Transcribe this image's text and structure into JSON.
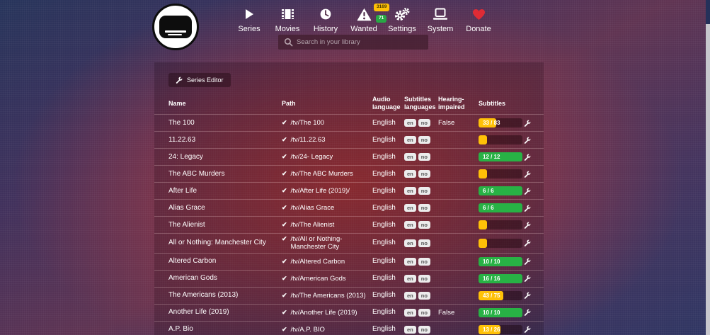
{
  "nav": {
    "items": [
      {
        "label": "Series",
        "icon": "play-icon"
      },
      {
        "label": "Movies",
        "icon": "film-icon"
      },
      {
        "label": "History",
        "icon": "clock-icon"
      },
      {
        "label": "Wanted",
        "icon": "warning-icon",
        "badges": [
          {
            "value": "3169",
            "color": "#ffc107"
          },
          {
            "value": "71",
            "color": "#28a745"
          }
        ]
      },
      {
        "label": "Settings",
        "icon": "cogs-icon"
      },
      {
        "label": "System",
        "icon": "laptop-icon"
      },
      {
        "label": "Donate",
        "icon": "heart-icon"
      }
    ],
    "search_placeholder": "Search in your library"
  },
  "editor": {
    "button_label": "Series Editor"
  },
  "icons": {
    "check": "✔"
  },
  "colors": {
    "progress_warning": "#ffc107",
    "progress_success": "#28b245",
    "heart_red": "#df2b35",
    "badge_bg": "#ececec"
  },
  "table": {
    "headers": [
      "Name",
      "Path",
      "Audio language",
      "Subtitles languages",
      "Hearing-impaired",
      "Subtitles"
    ],
    "rows": [
      {
        "name": "The 100",
        "path": "/tv/The 100",
        "audio": "English",
        "subtitle_languages": [
          "en",
          "no"
        ],
        "hi": "False",
        "progress": {
          "label": "33 / 83",
          "percent": 40,
          "state": "warning"
        }
      },
      {
        "name": "11.22.63",
        "path": "/tv/11.22.63",
        "audio": "English",
        "subtitle_languages": [
          "en",
          "no"
        ],
        "hi": "",
        "progress": {
          "label": "",
          "percent": 20,
          "state": "warning"
        }
      },
      {
        "name": "24: Legacy",
        "path": "/tv/24- Legacy",
        "audio": "English",
        "subtitle_languages": [
          "en",
          "no"
        ],
        "hi": "",
        "progress": {
          "label": "12 / 12",
          "percent": 100,
          "state": "success"
        }
      },
      {
        "name": "The ABC Murders",
        "path": "/tv/The ABC Murders",
        "audio": "English",
        "subtitle_languages": [
          "en",
          "no"
        ],
        "hi": "",
        "progress": {
          "label": "",
          "percent": 20,
          "state": "warning"
        }
      },
      {
        "name": "After Life",
        "path": "/tv/After Life (2019)/",
        "audio": "English",
        "subtitle_languages": [
          "en",
          "no"
        ],
        "hi": "",
        "progress": {
          "label": "6 / 6",
          "percent": 100,
          "state": "success"
        }
      },
      {
        "name": "Alias Grace",
        "path": "/tv/Alias Grace",
        "audio": "English",
        "subtitle_languages": [
          "en",
          "no"
        ],
        "hi": "",
        "progress": {
          "label": "6 / 6",
          "percent": 100,
          "state": "success"
        }
      },
      {
        "name": "The Alienist",
        "path": "/tv/The Alienist",
        "audio": "English",
        "subtitle_languages": [
          "en",
          "no"
        ],
        "hi": "",
        "progress": {
          "label": "",
          "percent": 20,
          "state": "warning"
        }
      },
      {
        "name": "All or Nothing: Manchester City",
        "path": "/tv/All or Nothing- Manchester City",
        "audio": "English",
        "subtitle_languages": [
          "en",
          "no"
        ],
        "hi": "",
        "progress": {
          "label": "",
          "percent": 20,
          "state": "warning"
        }
      },
      {
        "name": "Altered Carbon",
        "path": "/tv/Altered Carbon",
        "audio": "English",
        "subtitle_languages": [
          "en",
          "no"
        ],
        "hi": "",
        "progress": {
          "label": "10 / 10",
          "percent": 100,
          "state": "success"
        }
      },
      {
        "name": "American Gods",
        "path": "/tv/American Gods",
        "audio": "English",
        "subtitle_languages": [
          "en",
          "no"
        ],
        "hi": "",
        "progress": {
          "label": "16 / 16",
          "percent": 100,
          "state": "success"
        }
      },
      {
        "name": "The Americans (2013)",
        "path": "/tv/The Americans (2013)",
        "audio": "English",
        "subtitle_languages": [
          "en",
          "no"
        ],
        "hi": "",
        "progress": {
          "label": "43 / 75",
          "percent": 57,
          "state": "warning"
        }
      },
      {
        "name": "Another Life (2019)",
        "path": "/tv/Another Life (2019)",
        "audio": "English",
        "subtitle_languages": [
          "en",
          "no"
        ],
        "hi": "False",
        "progress": {
          "label": "10 / 10",
          "percent": 100,
          "state": "success"
        }
      },
      {
        "name": "A.P. Bio",
        "path": "/tv/A.P. BIO",
        "audio": "English",
        "subtitle_languages": [
          "en",
          "no"
        ],
        "hi": "",
        "progress": {
          "label": "13 / 26",
          "percent": 50,
          "state": "warning"
        }
      }
    ]
  }
}
